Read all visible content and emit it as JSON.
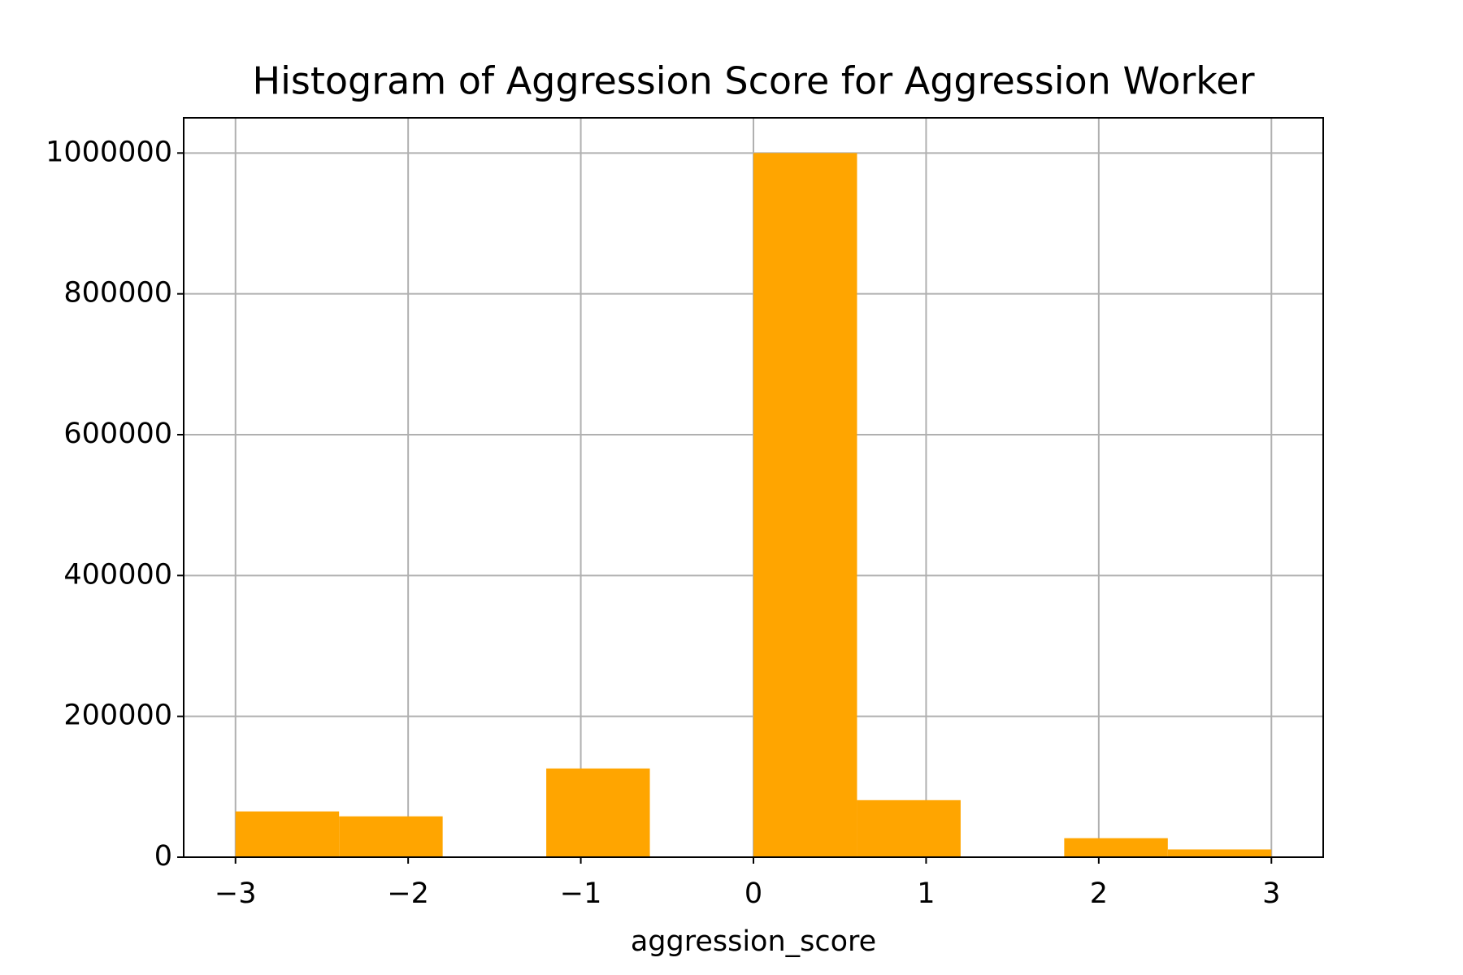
{
  "chart_data": {
    "type": "histogram",
    "title": "Histogram of Aggression Score for Aggression Worker",
    "xlabel": "aggression_score",
    "bins": [
      -3,
      -2.4,
      -1.8,
      -1.2,
      -0.6,
      0,
      0.6,
      1.2,
      1.8,
      2.4,
      3
    ],
    "values": [
      65000,
      58000,
      0,
      126000,
      0,
      1000000,
      81000,
      0,
      27000,
      11000
    ],
    "color": "#ffa500",
    "xlim": [
      -3.3,
      3.3
    ],
    "xticks": [
      {
        "value": -3,
        "label": "−3"
      },
      {
        "value": -2,
        "label": "−2"
      },
      {
        "value": -1,
        "label": "−1"
      },
      0,
      1,
      2,
      3
    ],
    "ylim": [
      0,
      1050000
    ],
    "yticks": [
      0,
      200000,
      400000,
      600000,
      800000,
      1000000
    ],
    "grid": true
  }
}
